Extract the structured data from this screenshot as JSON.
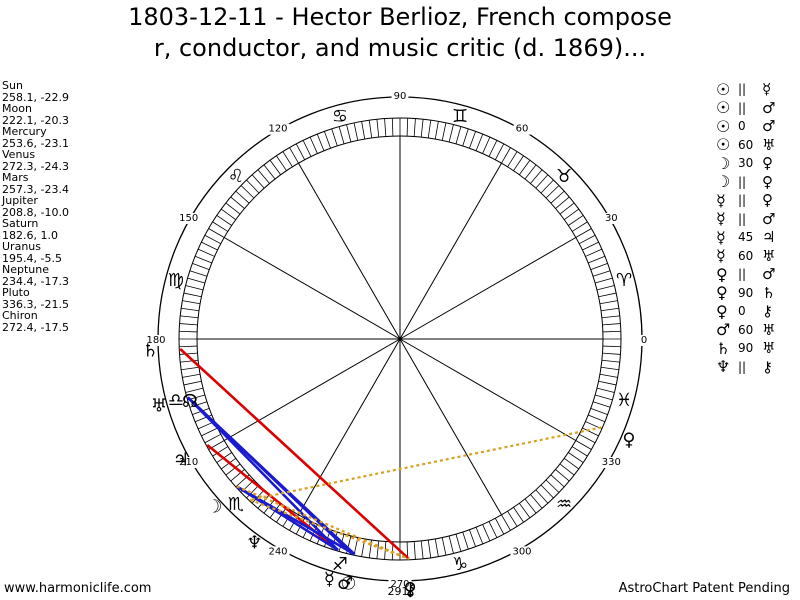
{
  "title": {
    "line1": "1803-12-11 - Hector Berlioz, French compose",
    "line2": "r, conductor, and music critic (d. 1869)..."
  },
  "planets": [
    {
      "name": "Sun",
      "coords": "258.1, -22.9"
    },
    {
      "name": "Moon",
      "coords": "222.1, -20.3"
    },
    {
      "name": "Mercury",
      "coords": "253.6, -23.1"
    },
    {
      "name": "Venus",
      "coords": "272.3, -24.3"
    },
    {
      "name": "Mars",
      "coords": "257.3, -23.4"
    },
    {
      "name": "Jupiter",
      "coords": "208.8, -10.0"
    },
    {
      "name": "Saturn",
      "coords": "182.6, 1.0"
    },
    {
      "name": "Uranus",
      "coords": "195.4, -5.5"
    },
    {
      "name": "Neptune",
      "coords": "234.4, -17.3"
    },
    {
      "name": "Pluto",
      "coords": "336.3, -21.5"
    },
    {
      "name": "Chiron",
      "coords": "272.4, -17.5"
    }
  ],
  "aspects": [
    {
      "p1": "☉",
      "asp": "||",
      "p2": "☿"
    },
    {
      "p1": "☉",
      "asp": "||",
      "p2": "♂"
    },
    {
      "p1": "☉",
      "asp": "0",
      "p2": "♂"
    },
    {
      "p1": "☉",
      "asp": "60",
      "p2": "♅"
    },
    {
      "p1": "☽",
      "asp": "30",
      "p2": "♀"
    },
    {
      "p1": "☽",
      "asp": "||",
      "p2": "♀"
    },
    {
      "p1": "☿",
      "asp": "||",
      "p2": "♀"
    },
    {
      "p1": "☿",
      "asp": "||",
      "p2": "♂"
    },
    {
      "p1": "☿",
      "asp": "45",
      "p2": "♃"
    },
    {
      "p1": "☿",
      "asp": "60",
      "p2": "♅"
    },
    {
      "p1": "♀",
      "asp": "||",
      "p2": "♂"
    },
    {
      "p1": "♀",
      "asp": "90",
      "p2": "♄"
    },
    {
      "p1": "♀",
      "asp": "0",
      "p2": "⚷"
    },
    {
      "p1": "♂",
      "asp": "60",
      "p2": "♅"
    },
    {
      "p1": "♄",
      "asp": "90",
      "p2": "♅"
    },
    {
      "p1": "♆",
      "asp": "||",
      "p2": "⚷"
    }
  ],
  "wheel": {
    "degree_labels": [
      "0",
      "30",
      "60",
      "90",
      "120",
      "150",
      "180",
      "210",
      "240",
      "270",
      "300",
      "330"
    ],
    "labeled_at": [
      0,
      30,
      60,
      90,
      120,
      150,
      180,
      210,
      240,
      270,
      300,
      330
    ],
    "sign_glyphs": [
      "♈",
      "♉",
      "♊",
      "♋",
      "♌",
      "♍",
      "♎",
      "♏",
      "♐",
      "♑",
      "♒",
      "♓"
    ],
    "bottom_overlap_label": "291",
    "planet_glyphs": [
      {
        "id": "sun",
        "glyph": "☉",
        "lon": 258.1
      },
      {
        "id": "moon",
        "glyph": "☽",
        "lon": 222.1
      },
      {
        "id": "mercury",
        "glyph": "☿",
        "lon": 253.6
      },
      {
        "id": "venus",
        "glyph": "♀",
        "lon": 272.3
      },
      {
        "id": "mars",
        "glyph": "♂",
        "lon": 257.3
      },
      {
        "id": "jupiter",
        "glyph": "♃",
        "lon": 208.8
      },
      {
        "id": "saturn",
        "glyph": "♄",
        "lon": 182.6
      },
      {
        "id": "uranus",
        "glyph": "♅",
        "lon": 195.4
      },
      {
        "id": "neptune",
        "glyph": "♆",
        "lon": 234.4
      },
      {
        "id": "pluto",
        "glyph": "♀",
        "lon": 336.3
      },
      {
        "id": "chiron",
        "glyph": "⚷",
        "lon": 272.4
      },
      {
        "id": "node",
        "glyph": "☊",
        "lon": 196.5
      }
    ],
    "aspect_lines": [
      {
        "from": 182.6,
        "to": 272.3,
        "color": "#dd0000"
      },
      {
        "from": 208.8,
        "to": 253.6,
        "color": "#dd0000"
      },
      {
        "from": 195.4,
        "to": 257.3,
        "color": "#1a1ad0"
      },
      {
        "from": 195.4,
        "to": 258.1,
        "color": "#1a1ad0"
      },
      {
        "from": 195.4,
        "to": 253.6,
        "color": "#1a1ad0"
      },
      {
        "from": 222.1,
        "to": 253.6,
        "color": "#1a1ad0"
      },
      {
        "from": 222.1,
        "to": 258.1,
        "color": "#1a1ad0"
      },
      {
        "from": 222.1,
        "to": 272.3,
        "color": "#d8a020",
        "dash": true
      },
      {
        "from": 336.3,
        "to": 227.0,
        "color": "#d8a020",
        "dash": true
      },
      {
        "from": 227.0,
        "to": 272.3,
        "color": "#d8a020",
        "dash": true
      }
    ]
  },
  "footer": {
    "left": "www.harmoniclife.com",
    "right": "AstroChart Patent Pending"
  }
}
